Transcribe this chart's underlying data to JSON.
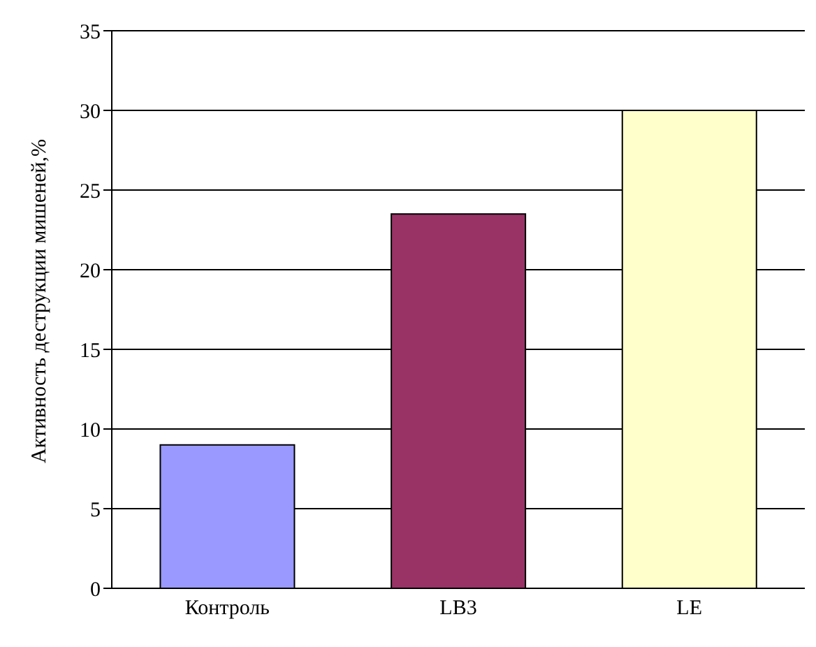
{
  "chart_data": {
    "type": "bar",
    "ylabel": "Активность деструкции мишеней,%",
    "categories": [
      "Контроль",
      "LB3",
      "LE"
    ],
    "values": [
      9,
      23.5,
      30
    ],
    "colors": [
      "#9999ff",
      "#993366",
      "#ffffcc"
    ],
    "ylim": [
      0,
      35
    ],
    "yticks": [
      0,
      5,
      10,
      15,
      20,
      25,
      30,
      35
    ],
    "grid": "y"
  }
}
